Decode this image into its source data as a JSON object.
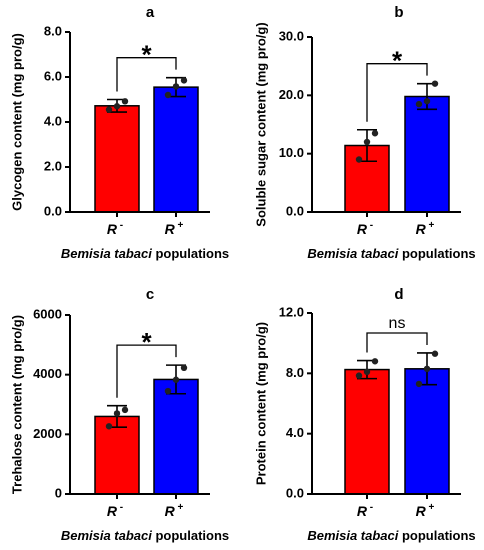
{
  "chart_data": [
    {
      "type": "bar",
      "panel": "a",
      "ylabel": "Glycogen content (mg pro/g)",
      "xlabel_italic": "Bemisia tabaci",
      "xlabel_rest": " populations",
      "ylim": [
        0,
        8
      ],
      "yticks": [
        0,
        2,
        4,
        6,
        8
      ],
      "ytick_labels": [
        "0.0",
        "2.0",
        "4.0",
        "6.0",
        "8.0"
      ],
      "categories": [
        "R",
        "R"
      ],
      "category_sups": [
        "-",
        "+"
      ],
      "values": [
        4.72,
        5.55
      ],
      "errors": [
        0.28,
        0.42
      ],
      "points": [
        [
          4.55,
          4.7,
          4.92
        ],
        [
          5.2,
          5.58,
          5.85
        ]
      ],
      "significance": "*",
      "colors": [
        "#ff0000",
        "#0000ff"
      ]
    },
    {
      "type": "bar",
      "panel": "b",
      "ylabel": "Soluble sugar content (mg pro/g)",
      "xlabel_italic": "Bemisia tabaci",
      "xlabel_rest": " populations",
      "ylim": [
        0,
        30
      ],
      "yticks": [
        0,
        10,
        20,
        30
      ],
      "ytick_labels": [
        "0.0",
        "10.0",
        "20.0",
        "30.0"
      ],
      "categories": [
        "R",
        "R"
      ],
      "category_sups": [
        "-",
        "+"
      ],
      "values": [
        11.4,
        19.8
      ],
      "errors": [
        2.7,
        2.2
      ],
      "points": [
        [
          9.0,
          12.0,
          13.5
        ],
        [
          18.5,
          19.0,
          22.0
        ]
      ],
      "significance": "*",
      "colors": [
        "#ff0000",
        "#0000ff"
      ]
    },
    {
      "type": "bar",
      "panel": "c",
      "ylabel": "Trehalose content (mg pro/g)",
      "xlabel_italic": "Bemisia tabaci",
      "xlabel_rest": " populations",
      "ylim": [
        0,
        6000
      ],
      "yticks": [
        0,
        2000,
        4000,
        6000
      ],
      "ytick_labels": [
        "0",
        "2000",
        "4000",
        "6000"
      ],
      "categories": [
        "R",
        "R"
      ],
      "category_sups": [
        "-",
        "+"
      ],
      "values": [
        2600,
        3840
      ],
      "errors": [
        360,
        480
      ],
      "points": [
        [
          2270,
          2700,
          2820
        ],
        [
          3450,
          3830,
          4230
        ]
      ],
      "significance": "*",
      "colors": [
        "#ff0000",
        "#0000ff"
      ]
    },
    {
      "type": "bar",
      "panel": "d",
      "ylabel": "Protein content (mg pro/g)",
      "xlabel_italic": "Bemisia tabaci",
      "xlabel_rest": " populations",
      "ylim": [
        0,
        12
      ],
      "yticks": [
        0,
        4,
        8,
        12
      ],
      "ytick_labels": [
        "0.0",
        "4.0",
        "8.0",
        "12.0"
      ],
      "categories": [
        "R",
        "R"
      ],
      "category_sups": [
        "-",
        "+"
      ],
      "values": [
        8.25,
        8.3
      ],
      "errors": [
        0.6,
        1.05
      ],
      "points": [
        [
          7.85,
          8.1,
          8.8
        ],
        [
          7.3,
          8.3,
          9.3
        ]
      ],
      "significance": "ns",
      "colors": [
        "#ff0000",
        "#0000ff"
      ]
    }
  ]
}
